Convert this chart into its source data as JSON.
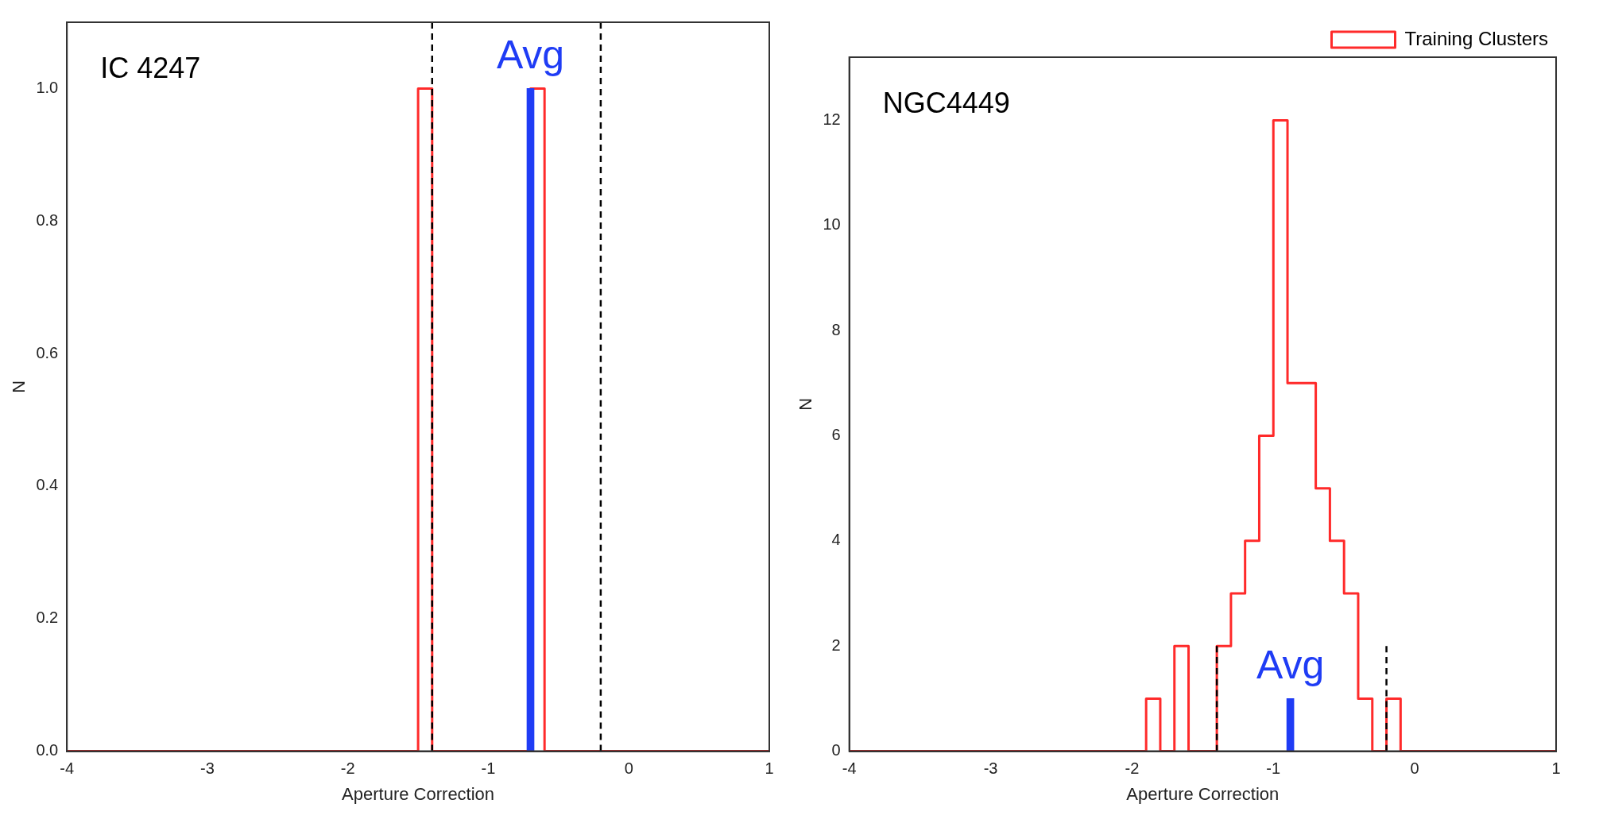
{
  "chart_data": [
    {
      "type": "histogram",
      "xlabel": "Aperture Correction",
      "ylabel": "N",
      "xlim": [
        -4,
        1
      ],
      "xticks": [
        -4,
        -3,
        -2,
        -1,
        0,
        1
      ],
      "ylim": [
        0,
        1.1
      ],
      "yticks": [
        {
          "value": 0,
          "label": "0.0"
        },
        0.2,
        0.4,
        0.6,
        0.8,
        {
          "value": 1,
          "label": "1.0"
        }
      ],
      "annotations": [
        "IC 4247",
        {
          "text": "Avg",
          "x": -0.7,
          "y": 1
        }
      ],
      "series": [
        {
          "color": "#ff2a2a",
          "bins": [
            -4,
            -3.9,
            -3.8,
            -3.7,
            -3.6,
            -3.5,
            -3.4,
            -3.3,
            -3.2,
            -3.1,
            -3,
            -2.9,
            -2.8,
            -2.7,
            -2.6,
            -2.5,
            -2.4,
            -2.3,
            -2.2,
            -2.1,
            -2,
            -1.9,
            -1.8,
            -1.7,
            -1.6,
            -1.5,
            -1.4,
            -1.3,
            -1.2,
            -1.1,
            -1,
            -0.9,
            -0.8,
            -0.7,
            -0.6,
            -0.5,
            -0.4,
            -0.3,
            -0.2,
            -0.1,
            0,
            0.1,
            0.2,
            0.3,
            0.4,
            0.5,
            0.6,
            0.7,
            0.8,
            0.9,
            1
          ],
          "values": [
            0,
            0,
            0,
            0,
            0,
            0,
            0,
            0,
            0,
            0,
            0,
            0,
            0,
            0,
            0,
            0,
            0,
            0,
            0,
            0,
            0,
            0,
            0,
            0,
            0,
            1,
            0,
            0,
            0,
            0,
            0,
            0,
            0,
            1,
            0,
            0,
            0,
            0,
            0,
            0,
            0,
            0,
            0,
            0,
            0,
            0,
            0,
            0,
            0,
            0
          ]
        },
        {
          "type": "bar",
          "color": "#1f3cf5",
          "x": [
            -0.7
          ],
          "values": [
            1
          ]
        },
        {
          "type": "line",
          "color": "#000000",
          "line_style": "dashed",
          "x": [
            -1.4,
            -1.4
          ],
          "values": [
            0,
            1.1
          ]
        },
        {
          "type": "line",
          "color": "#000000",
          "line_style": "dashed",
          "x": [
            -0.2,
            -0.2
          ],
          "values": [
            0,
            1.1
          ]
        }
      ]
    },
    {
      "type": "histogram",
      "xlabel": "Aperture Correction",
      "ylabel": "N",
      "xlim": [
        -4,
        1
      ],
      "xticks": [
        -4,
        -3,
        -2,
        -1,
        0,
        1
      ],
      "ylim": [
        0,
        13.2
      ],
      "yticks": [
        0,
        2,
        4,
        6,
        8,
        10,
        12
      ],
      "legend": "top right",
      "annotations": [
        "NGC4449",
        {
          "text": "Avg",
          "x": -0.88,
          "y": 1
        }
      ],
      "series": [
        {
          "name": "Training Clusters",
          "color": "#ff2a2a",
          "bins": [
            -4,
            -3.9,
            -3.8,
            -3.7,
            -3.6,
            -3.5,
            -3.4,
            -3.3,
            -3.2,
            -3.1,
            -3,
            -2.9,
            -2.8,
            -2.7,
            -2.6,
            -2.5,
            -2.4,
            -2.3,
            -2.2,
            -2.1,
            -2,
            -1.9,
            -1.8,
            -1.7,
            -1.6,
            -1.5,
            -1.4,
            -1.3,
            -1.2,
            -1.1,
            -1,
            -0.9,
            -0.8,
            -0.7,
            -0.6,
            -0.5,
            -0.4,
            -0.3,
            -0.2,
            -0.1,
            0,
            0.1,
            0.2,
            0.3,
            0.4,
            0.5,
            0.6,
            0.7,
            0.8,
            0.9,
            1
          ],
          "values": [
            0,
            0,
            0,
            0,
            0,
            0,
            0,
            0,
            0,
            0,
            0,
            0,
            0,
            0,
            0,
            0,
            0,
            0,
            0,
            0,
            0,
            1,
            0,
            2,
            0,
            0,
            2,
            3,
            4,
            6,
            12,
            7,
            7,
            5,
            4,
            3,
            1,
            0,
            1,
            0,
            0,
            0,
            0,
            0,
            0,
            0,
            0,
            0,
            0,
            0
          ]
        },
        {
          "type": "bar",
          "color": "#1f3cf5",
          "x": [
            -0.88
          ],
          "values": [
            1
          ]
        },
        {
          "type": "line",
          "color": "#000000",
          "line_style": "dashed",
          "x": [
            -1.4,
            -1.4
          ],
          "values": [
            0,
            2
          ]
        },
        {
          "type": "line",
          "color": "#000000",
          "line_style": "dashed",
          "x": [
            -0.2,
            -0.2
          ],
          "values": [
            0,
            2
          ]
        }
      ]
    }
  ]
}
